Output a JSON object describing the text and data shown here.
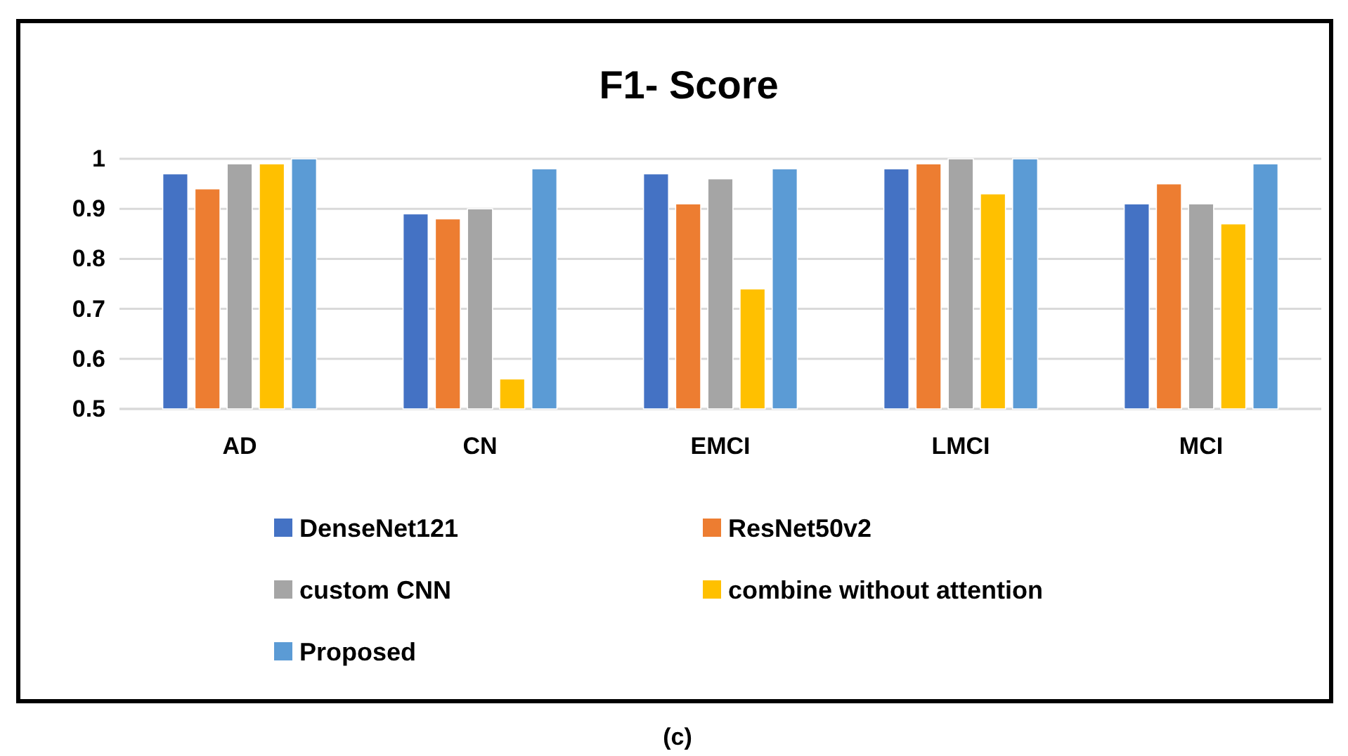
{
  "chart_data": {
    "type": "bar",
    "title": "F1- Score",
    "categories": [
      "AD",
      "CN",
      "EMCI",
      "LMCI",
      "MCI"
    ],
    "series": [
      {
        "name": "DenseNet121",
        "color": "#4472c4",
        "values": [
          0.97,
          0.89,
          0.97,
          0.98,
          0.91
        ]
      },
      {
        "name": "ResNet50v2",
        "color": "#ed7d31",
        "values": [
          0.94,
          0.88,
          0.91,
          0.99,
          0.95
        ]
      },
      {
        "name": "custom CNN",
        "color": "#a5a5a5",
        "values": [
          0.99,
          0.9,
          0.96,
          1.0,
          0.91
        ]
      },
      {
        "name": "combine without  attention",
        "color": "#ffc000",
        "values": [
          0.99,
          0.56,
          0.74,
          0.93,
          0.87
        ]
      },
      {
        "name": "Proposed",
        "color": "#5b9bd5",
        "values": [
          1.0,
          0.98,
          0.98,
          1.0,
          0.99
        ]
      }
    ],
    "ylim": [
      0.5,
      1
    ],
    "yticks": [
      0.5,
      0.6,
      0.7,
      0.8,
      0.9,
      1
    ],
    "grid": "y",
    "legend": "bottom",
    "annotations": [
      "(c)"
    ]
  }
}
